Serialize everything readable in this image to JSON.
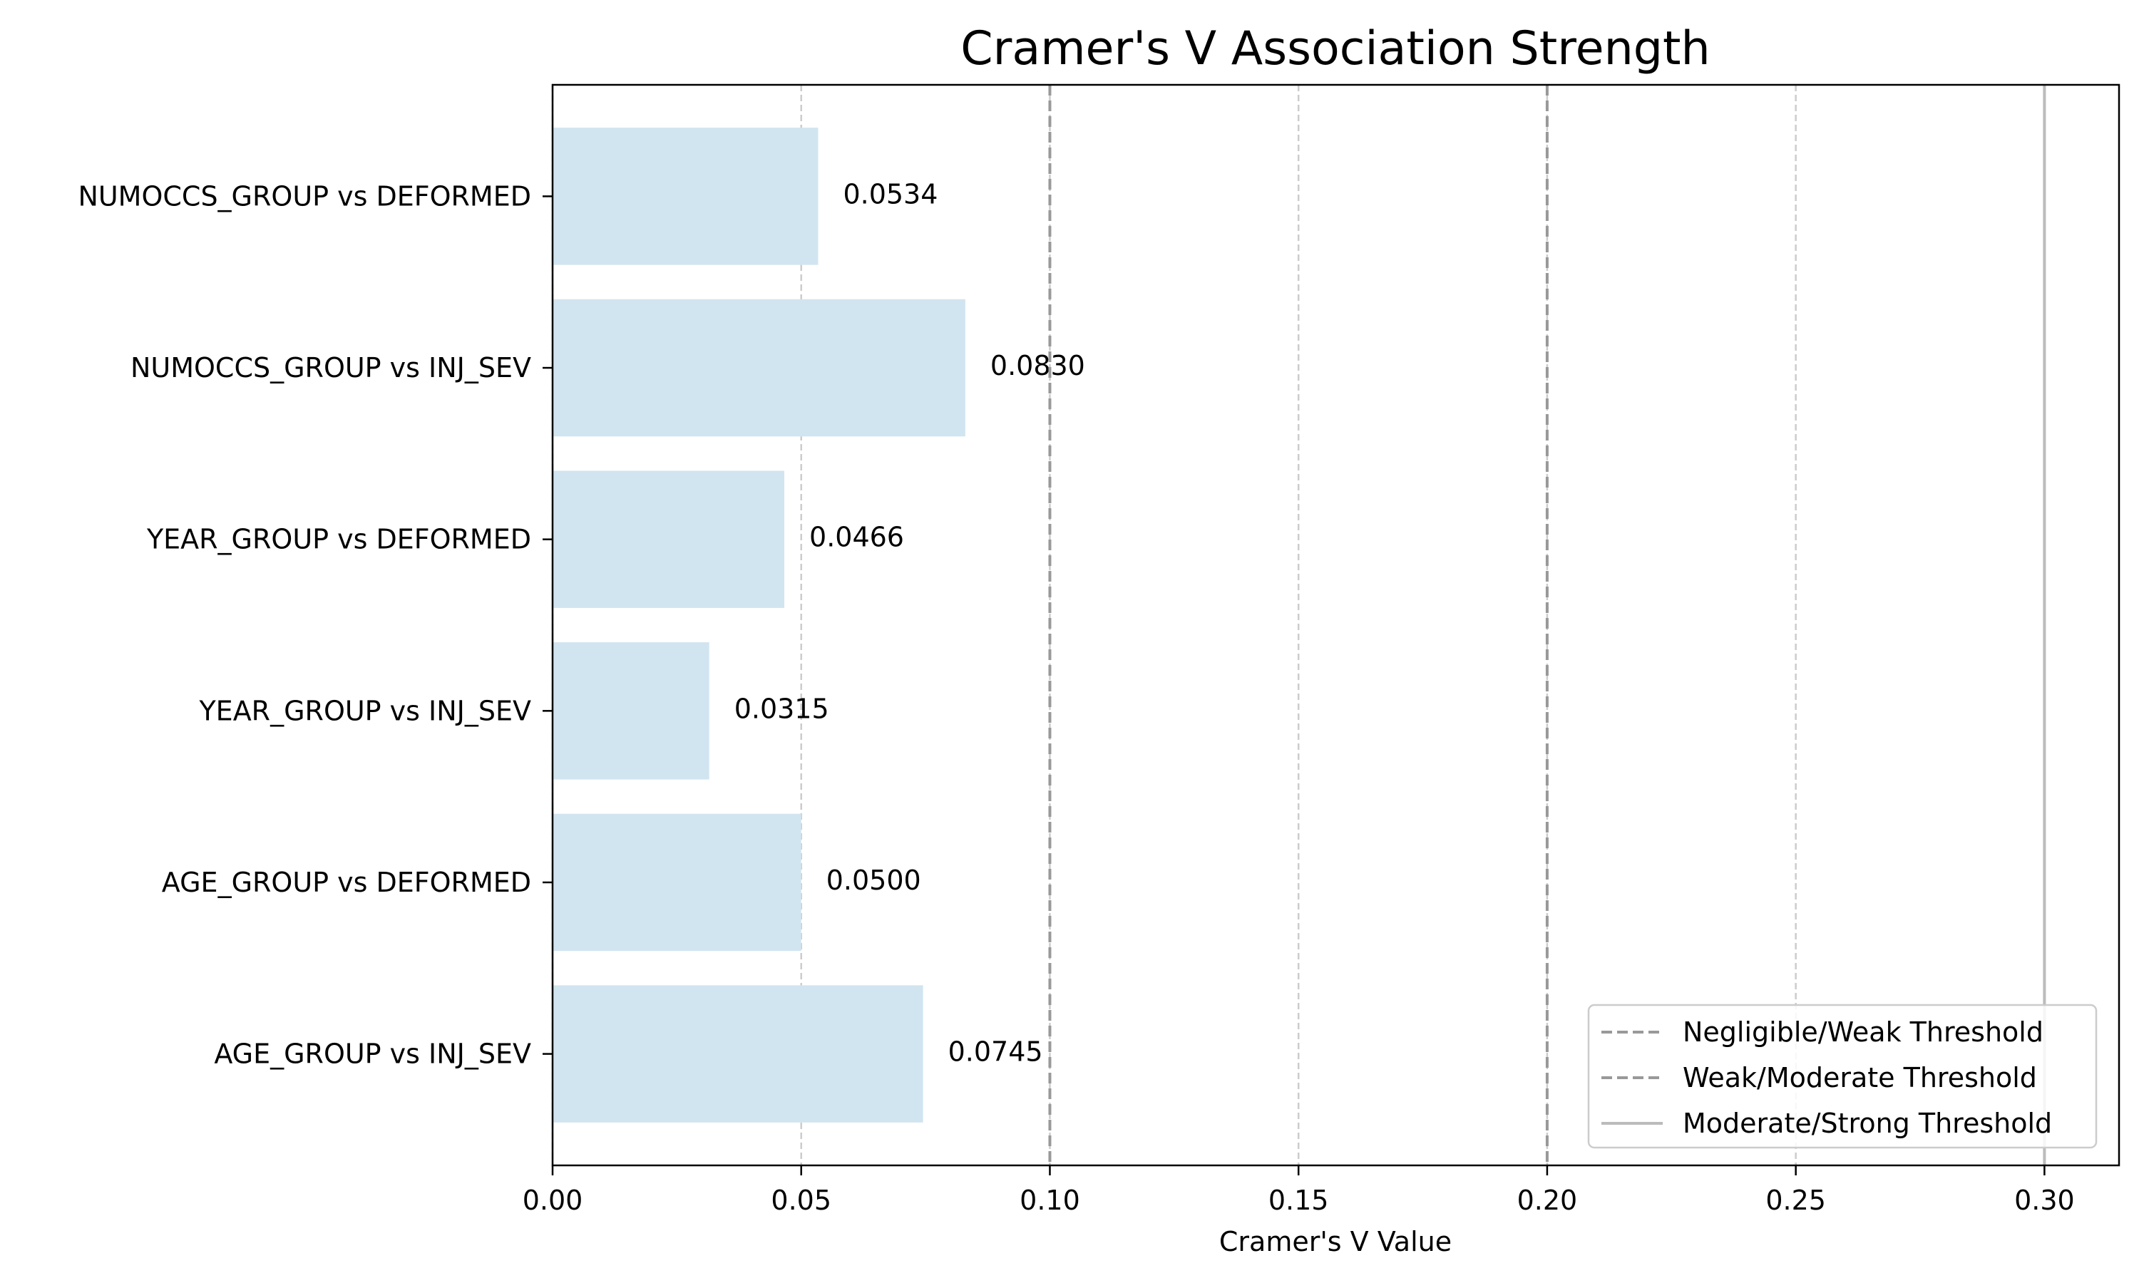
{
  "chart_data": {
    "type": "bar",
    "orientation": "horizontal",
    "title": "Cramer's V Association Strength",
    "xlabel": "Cramer's V Value",
    "ylabel": "",
    "xlim": [
      0,
      0.315
    ],
    "xticks": [
      0.0,
      0.05,
      0.1,
      0.15,
      0.2,
      0.25,
      0.3
    ],
    "xtick_labels": [
      "0.00",
      "0.05",
      "0.10",
      "0.15",
      "0.20",
      "0.25",
      "0.30"
    ],
    "grid": "x, dashed",
    "categories": [
      "NUMOCCS_GROUP vs DEFORMED",
      "NUMOCCS_GROUP vs INJ_SEV",
      "YEAR_GROUP vs DEFORMED",
      "YEAR_GROUP vs INJ_SEV",
      "AGE_GROUP vs DEFORMED",
      "AGE_GROUP vs INJ_SEV"
    ],
    "values": [
      0.0534,
      0.083,
      0.0466,
      0.0315,
      0.05,
      0.0745
    ],
    "value_labels": [
      "0.0534",
      "0.0830",
      "0.0466",
      "0.0315",
      "0.0500",
      "0.0745"
    ],
    "bar_color": "#d1e5f0",
    "thresholds": [
      {
        "name": "Negligible/Weak Threshold",
        "x": 0.1,
        "style": "dashed",
        "color": "#999999"
      },
      {
        "name": "Weak/Moderate Threshold",
        "x": 0.2,
        "style": "dashed",
        "color": "#999999"
      },
      {
        "name": "Moderate/Strong Threshold",
        "x": 0.3,
        "style": "solid",
        "color": "#bbbbbb"
      }
    ],
    "legend_position": "bottom-right"
  }
}
